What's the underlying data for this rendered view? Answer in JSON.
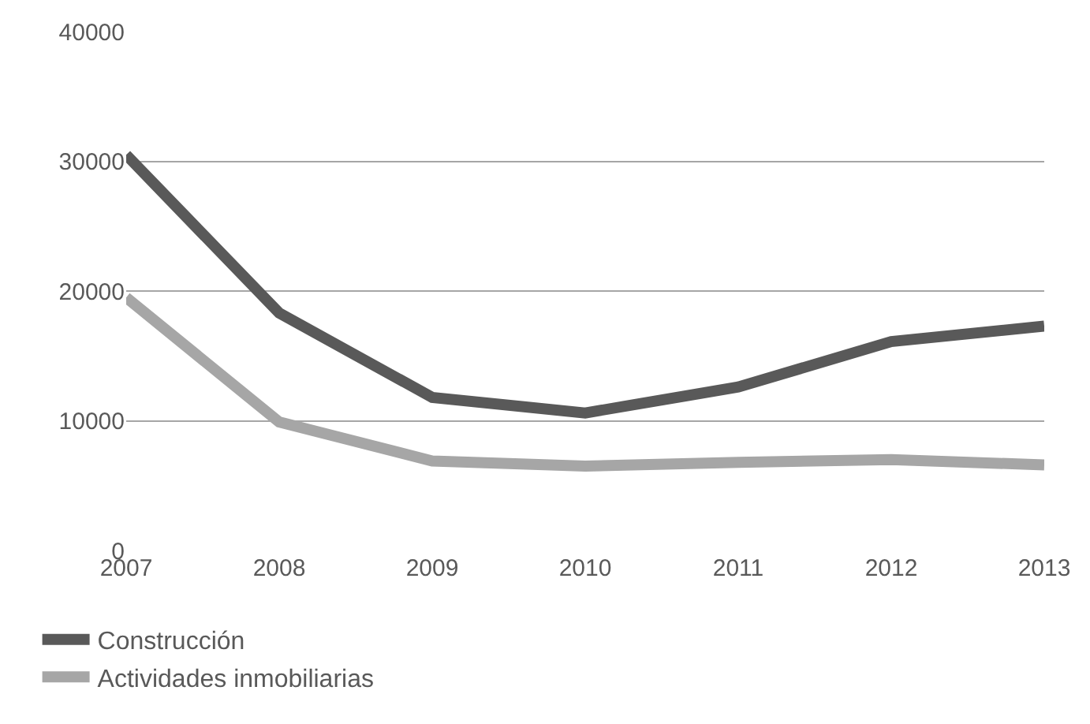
{
  "chart_data": {
    "type": "line",
    "x": [
      2007,
      2008,
      2009,
      2010,
      2011,
      2012,
      2013
    ],
    "series": [
      {
        "name": "Construcción",
        "color": "#595959",
        "values": [
          30500,
          18300,
          11800,
          10600,
          12600,
          16100,
          17300
        ]
      },
      {
        "name": "Actividades inmobiliarias",
        "color": "#a6a6a6",
        "values": [
          19500,
          9900,
          6900,
          6500,
          6800,
          7000,
          6600
        ]
      }
    ],
    "xlim": [
      2007,
      2013
    ],
    "xticks": [
      2007,
      2008,
      2009,
      2010,
      2011,
      2012,
      2013
    ],
    "ylim": [
      0,
      40000
    ],
    "yticks": [
      0,
      10000,
      20000,
      30000,
      40000
    ],
    "grid": "y",
    "legend": "bottom left",
    "marker": "none",
    "line_style": "solid"
  }
}
